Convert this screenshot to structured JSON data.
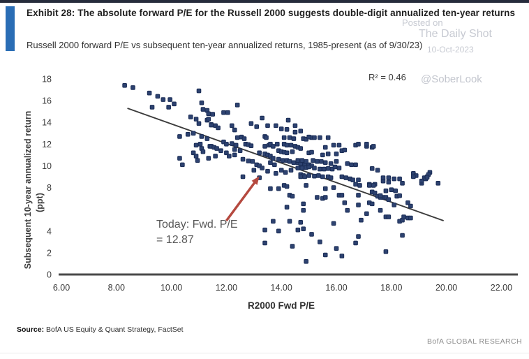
{
  "header": {
    "title": "Exhibit 28: The absolute forward P/E for the Russell 2000 suggests double-digit annualized ten-year returns",
    "subtitle": "Russell 2000 forward P/E vs subsequent ten-year annualized returns, 1985-present (as of 9/30/23)",
    "accent_color": "#2a6db5"
  },
  "watermark": {
    "posted_on": "Posted on",
    "site": "The Daily Shot",
    "date": "10-Oct-2023",
    "handle": "@SoberLook",
    "color": "#c7cad2"
  },
  "chart_data": {
    "type": "scatter",
    "title": "Russell 2000 forward P/E vs subsequent ten-year annualized returns, 1985-present",
    "xlabel": "R2000 Fwd P/E",
    "ylabel": "Subsequent  10-year annualized return",
    "ylabel_units": "(ppt)",
    "xlim": [
      6,
      22
    ],
    "ylim": [
      0,
      18
    ],
    "grid": false,
    "legend": "none",
    "r_squared": 0.46,
    "r_squared_label": "R² = 0.46",
    "x_ticks": [
      {
        "value": 6,
        "label": "6.00"
      },
      {
        "value": 8,
        "label": "8.00"
      },
      {
        "value": 10,
        "label": "10.00"
      },
      {
        "value": 12,
        "label": "12.00"
      },
      {
        "value": 14,
        "label": "14.00"
      },
      {
        "value": 16,
        "label": "16.00"
      },
      {
        "value": 18,
        "label": "18.00"
      },
      {
        "value": 20,
        "label": "20.00"
      },
      {
        "value": 22,
        "label": "22.00"
      }
    ],
    "y_ticks": [
      {
        "value": 0,
        "label": "0"
      },
      {
        "value": 2,
        "label": "2"
      },
      {
        "value": 4,
        "label": "4"
      },
      {
        "value": 6,
        "label": ""
      },
      {
        "value": 8,
        "label": "8"
      },
      {
        "value": 10,
        "label": "10"
      },
      {
        "value": 12,
        "label": "12"
      },
      {
        "value": 14,
        "label": "14"
      },
      {
        "value": 16,
        "label": "16"
      },
      {
        "value": 18,
        "label": "18"
      }
    ],
    "trendline": {
      "x1": 8.4,
      "y1": 15.3,
      "x2": 19.9,
      "y2": 4.95,
      "color": "#3b3b3b"
    },
    "annotation": {
      "line1": "Today: Fwd. P/E",
      "line2": "= 12.87",
      "value": 12.87,
      "color": "#b5493f",
      "arrow": {
        "x1": 12.0,
        "y1": 4.95,
        "x2": 13.2,
        "y2": 9.05
      }
    },
    "marker": {
      "fill": "#2d4270",
      "stroke": "#1a2c55",
      "size": 5.6
    },
    "points": [
      [
        8.3,
        17.4
      ],
      [
        8.6,
        17.2
      ],
      [
        9.2,
        16.7
      ],
      [
        9.5,
        16.4
      ],
      [
        9.7,
        16.1
      ],
      [
        9.95,
        16.1
      ],
      [
        9.9,
        15.4
      ],
      [
        10.1,
        15.7
      ],
      [
        9.3,
        15.4
      ],
      [
        11.0,
        16.9
      ],
      [
        11.1,
        15.8
      ],
      [
        11.15,
        15.2
      ],
      [
        11.3,
        15.1
      ],
      [
        11.35,
        14.8
      ],
      [
        10.7,
        14.5
      ],
      [
        10.9,
        14.3
      ],
      [
        11.0,
        13.9
      ],
      [
        11.3,
        14.2
      ],
      [
        11.45,
        13.8
      ],
      [
        10.3,
        12.7
      ],
      [
        10.6,
        12.9
      ],
      [
        10.8,
        13.0
      ],
      [
        11.1,
        12.7
      ],
      [
        11.3,
        12.5
      ],
      [
        10.9,
        11.9
      ],
      [
        11.05,
        12.0
      ],
      [
        11.1,
        11.6
      ],
      [
        11.4,
        11.8
      ],
      [
        10.8,
        11.2
      ],
      [
        11.15,
        11.3
      ],
      [
        10.3,
        10.7
      ],
      [
        10.9,
        10.9
      ],
      [
        10.95,
        10.5
      ],
      [
        10.4,
        10.1
      ],
      [
        12.4,
        15.6
      ],
      [
        11.9,
        14.9
      ],
      [
        12.05,
        14.9
      ],
      [
        11.5,
        14.75
      ],
      [
        11.35,
        14.3
      ],
      [
        11.45,
        13.75
      ],
      [
        11.6,
        13.7
      ],
      [
        11.7,
        13.5
      ],
      [
        12.2,
        13.7
      ],
      [
        12.3,
        13.3
      ],
      [
        12.55,
        12.65
      ],
      [
        12.4,
        12.6
      ],
      [
        12.65,
        12.5
      ],
      [
        11.9,
        12.2
      ],
      [
        12.0,
        12.0
      ],
      [
        12.2,
        12.05
      ],
      [
        12.35,
        11.9
      ],
      [
        11.45,
        11.8
      ],
      [
        11.55,
        11.7
      ],
      [
        11.65,
        11.6
      ],
      [
        12.3,
        11.5
      ],
      [
        12.5,
        11.4
      ],
      [
        12.7,
        12.0
      ],
      [
        12.8,
        11.95
      ],
      [
        12.9,
        11.85
      ],
      [
        11.8,
        11.4
      ],
      [
        12.0,
        11.2
      ],
      [
        12.1,
        10.9
      ],
      [
        12.3,
        11.0
      ],
      [
        11.6,
        10.9
      ],
      [
        11.35,
        10.7
      ],
      [
        12.6,
        10.6
      ],
      [
        12.8,
        10.45
      ],
      [
        12.95,
        10.4
      ],
      [
        13.1,
        10.1
      ],
      [
        13.2,
        10.0
      ],
      [
        12.9,
        13.9
      ],
      [
        13.1,
        13.6
      ],
      [
        13.3,
        14.4
      ],
      [
        13.4,
        12.7
      ],
      [
        13.5,
        13.7
      ],
      [
        13.8,
        13.7
      ],
      [
        14.0,
        13.4
      ],
      [
        14.2,
        13.35
      ],
      [
        14.25,
        14.2
      ],
      [
        14.5,
        13.7
      ],
      [
        14.5,
        13.1
      ],
      [
        13.45,
        12.6
      ],
      [
        13.4,
        11.8
      ],
      [
        13.55,
        11.9
      ],
      [
        13.6,
        12.0
      ],
      [
        13.7,
        11.8
      ],
      [
        13.85,
        12.0
      ],
      [
        14.1,
        12.6
      ],
      [
        14.3,
        12.6
      ],
      [
        14.45,
        12.5
      ],
      [
        14.1,
        12.0
      ],
      [
        14.2,
        11.9
      ],
      [
        14.35,
        11.9
      ],
      [
        14.5,
        11.8
      ],
      [
        14.6,
        11.7
      ],
      [
        14.8,
        12.5
      ],
      [
        14.9,
        12.45
      ],
      [
        15.1,
        12.6
      ],
      [
        14.7,
        13.2
      ],
      [
        15.0,
        12.65
      ],
      [
        15.2,
        12.6
      ],
      [
        15.4,
        12.6
      ],
      [
        15.7,
        12.6
      ],
      [
        13.9,
        11.4
      ],
      [
        14.0,
        11.3
      ],
      [
        14.1,
        11.25
      ],
      [
        14.2,
        11.2
      ],
      [
        14.4,
        11.3
      ],
      [
        13.2,
        11.2
      ],
      [
        13.4,
        11.1
      ],
      [
        13.5,
        11.0
      ],
      [
        13.6,
        10.9
      ],
      [
        13.7,
        10.7
      ],
      [
        15.6,
        11.7
      ],
      [
        15.9,
        11.9
      ],
      [
        16.1,
        11.9
      ],
      [
        16.2,
        11.4
      ],
      [
        16.3,
        11.45
      ],
      [
        14.7,
        11.6
      ],
      [
        15.0,
        11.2
      ],
      [
        15.1,
        11.25
      ],
      [
        15.5,
        11.0
      ],
      [
        15.7,
        11.1
      ],
      [
        16.0,
        11.1
      ],
      [
        13.9,
        10.6
      ],
      [
        14.05,
        10.5
      ],
      [
        14.2,
        10.5
      ],
      [
        14.3,
        10.4
      ],
      [
        14.45,
        10.3
      ],
      [
        14.6,
        10.3
      ],
      [
        14.7,
        10.2
      ],
      [
        14.85,
        10.1
      ],
      [
        15.0,
        10.1
      ],
      [
        15.1,
        10.0
      ],
      [
        14.6,
        10.5
      ],
      [
        14.75,
        10.5
      ],
      [
        14.9,
        10.4
      ],
      [
        15.15,
        10.5
      ],
      [
        15.3,
        10.4
      ],
      [
        15.45,
        10.4
      ],
      [
        14.6,
        9.8
      ],
      [
        14.75,
        9.8
      ],
      [
        14.9,
        9.85
      ],
      [
        15.0,
        9.9
      ],
      [
        15.2,
        9.8
      ],
      [
        15.4,
        9.7
      ],
      [
        15.55,
        9.7
      ],
      [
        15.7,
        9.75
      ],
      [
        15.85,
        9.7
      ],
      [
        15.95,
        9.9
      ],
      [
        16.1,
        9.8
      ],
      [
        17.3,
        9.75
      ],
      [
        17.5,
        9.6
      ],
      [
        14.7,
        9.2
      ],
      [
        14.8,
        9.1
      ],
      [
        15.0,
        9.1
      ],
      [
        15.2,
        9.05
      ],
      [
        15.35,
        9.1
      ],
      [
        15.5,
        9.0
      ],
      [
        15.7,
        9.0
      ],
      [
        15.8,
        8.9
      ],
      [
        16.2,
        9.0
      ],
      [
        16.35,
        8.9
      ],
      [
        16.5,
        8.8
      ],
      [
        16.6,
        8.7
      ],
      [
        16.8,
        8.7
      ],
      [
        12.6,
        9.0
      ],
      [
        13.2,
        8.9
      ],
      [
        14.7,
        9.0
      ],
      [
        14.85,
        9.0
      ],
      [
        13.0,
        9.6
      ],
      [
        13.3,
        9.8
      ],
      [
        13.5,
        9.5
      ],
      [
        13.8,
        9.3
      ],
      [
        14.0,
        9.6
      ],
      [
        14.15,
        9.4
      ],
      [
        14.35,
        9.6
      ],
      [
        15.6,
        10.3
      ],
      [
        15.8,
        10.2
      ],
      [
        16.0,
        10.4
      ],
      [
        16.4,
        10.2
      ],
      [
        16.55,
        10.1
      ],
      [
        16.7,
        10.1
      ],
      [
        13.6,
        10.3
      ],
      [
        13.75,
        10.1
      ],
      [
        17.1,
        11.8
      ],
      [
        17.3,
        11.7
      ],
      [
        16.7,
        11.9
      ],
      [
        16.8,
        12.0
      ],
      [
        17.1,
        12.0
      ],
      [
        17.35,
        11.8
      ],
      [
        18.8,
        9.3
      ],
      [
        19.4,
        9.4
      ],
      [
        18.1,
        8.8
      ],
      [
        18.3,
        8.8
      ],
      [
        17.7,
        8.6
      ],
      [
        17.9,
        8.5
      ],
      [
        18.9,
        9.1
      ],
      [
        19.3,
        9.0
      ],
      [
        17.2,
        8.3
      ],
      [
        17.4,
        8.3
      ],
      [
        18.4,
        8.4
      ],
      [
        19.1,
        8.4
      ],
      [
        19.2,
        8.9
      ],
      [
        19.35,
        9.2
      ],
      [
        19.1,
        8.6
      ],
      [
        19.25,
        8.8
      ],
      [
        19.3,
        8.95
      ],
      [
        19.7,
        8.4
      ],
      [
        18.8,
        9.0
      ],
      [
        17.7,
        8.9
      ],
      [
        17.9,
        8.9
      ],
      [
        17.2,
        8.2
      ],
      [
        17.35,
        8.2
      ],
      [
        17.3,
        7.6
      ],
      [
        17.4,
        7.5
      ],
      [
        17.5,
        7.2
      ],
      [
        17.7,
        7.1
      ],
      [
        17.2,
        6.6
      ],
      [
        17.3,
        6.5
      ],
      [
        17.8,
        7.7
      ],
      [
        18.0,
        7.8
      ],
      [
        18.15,
        7.7
      ],
      [
        17.6,
        7.1
      ],
      [
        17.8,
        7.1
      ],
      [
        17.9,
        6.9
      ],
      [
        18.2,
        7.2
      ],
      [
        18.3,
        7.25
      ],
      [
        18.1,
        6.4
      ],
      [
        18.6,
        6.6
      ],
      [
        18.7,
        6.3
      ],
      [
        17.6,
        7.25
      ],
      [
        13.6,
        7.9
      ],
      [
        13.9,
        7.9
      ],
      [
        14.1,
        8.2
      ],
      [
        14.2,
        8.1
      ],
      [
        14.9,
        8.2
      ],
      [
        14.3,
        7.3
      ],
      [
        14.4,
        7.2
      ],
      [
        14.2,
        6.2
      ],
      [
        14.8,
        6.5
      ],
      [
        14.8,
        5.9
      ],
      [
        15.3,
        7.1
      ],
      [
        15.5,
        7.0
      ],
      [
        15.6,
        7.1
      ],
      [
        15.6,
        7.9
      ],
      [
        15.9,
        8.0
      ],
      [
        16.1,
        7.3
      ],
      [
        16.2,
        7.3
      ],
      [
        16.3,
        6.6
      ],
      [
        16.4,
        5.9
      ],
      [
        16.8,
        6.4
      ],
      [
        16.8,
        7.3
      ],
      [
        16.7,
        8.3
      ],
      [
        16.85,
        8.2
      ],
      [
        17.1,
        5.6
      ],
      [
        16.9,
        5.0
      ],
      [
        17.6,
        5.9
      ],
      [
        17.8,
        5.3
      ],
      [
        17.9,
        5.3
      ],
      [
        18.3,
        4.9
      ],
      [
        18.4,
        5.0
      ],
      [
        18.45,
        5.3
      ],
      [
        18.6,
        5.2
      ],
      [
        18.7,
        5.2
      ],
      [
        13.7,
        4.9
      ],
      [
        14.3,
        4.9
      ],
      [
        14.7,
        4.8
      ],
      [
        14.8,
        4.2
      ],
      [
        14.6,
        4.1
      ],
      [
        13.9,
        4.0
      ],
      [
        13.4,
        4.1
      ],
      [
        13.4,
        2.9
      ],
      [
        14.4,
        2.6
      ],
      [
        15.1,
        3.7
      ],
      [
        15.4,
        3.0
      ],
      [
        15.9,
        4.7
      ],
      [
        16.0,
        2.4
      ],
      [
        16.2,
        1.7
      ],
      [
        15.6,
        1.8
      ],
      [
        14.9,
        1.2
      ],
      [
        16.8,
        3.5
      ],
      [
        16.7,
        2.9
      ],
      [
        18.4,
        3.6
      ],
      [
        17.8,
        2.1
      ]
    ]
  },
  "footer": {
    "source_label": "Source:",
    "source_text": " BofA US Equity & Quant Strategy, FactSet",
    "brand": "BofA GLOBAL RESEARCH"
  }
}
